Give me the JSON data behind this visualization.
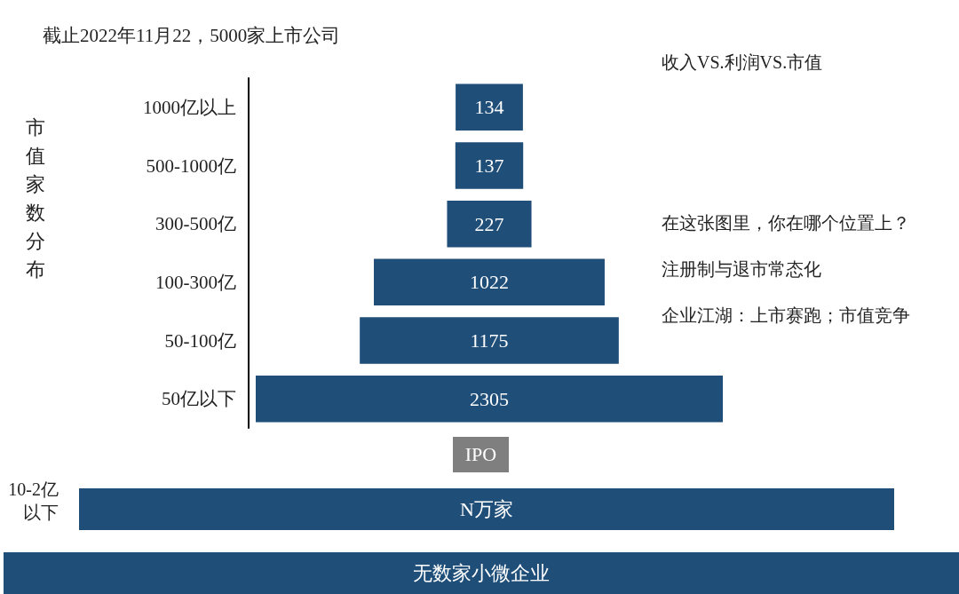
{
  "chart_data": {
    "type": "other",
    "title": "截止2022年11月22，5000家上市公司",
    "ylabel": "市值家数分布",
    "categories": [
      "1000亿以上",
      "500-1000亿",
      "300-500亿",
      "100-300亿",
      "50-100亿",
      "50亿以下"
    ],
    "values": [
      134,
      137,
      227,
      1022,
      1175,
      2305
    ],
    "color": "#1f4e79",
    "data_labels": true,
    "annotations": [
      "收入VS.利润VS.市值",
      "在这张图里，你在哪个位置上？",
      "注册制与退市常态化",
      "企业江湖：上市赛跑；市值竞争",
      "IPO",
      "10-2亿以下",
      "N万家",
      "无数家小微企业"
    ]
  }
}
